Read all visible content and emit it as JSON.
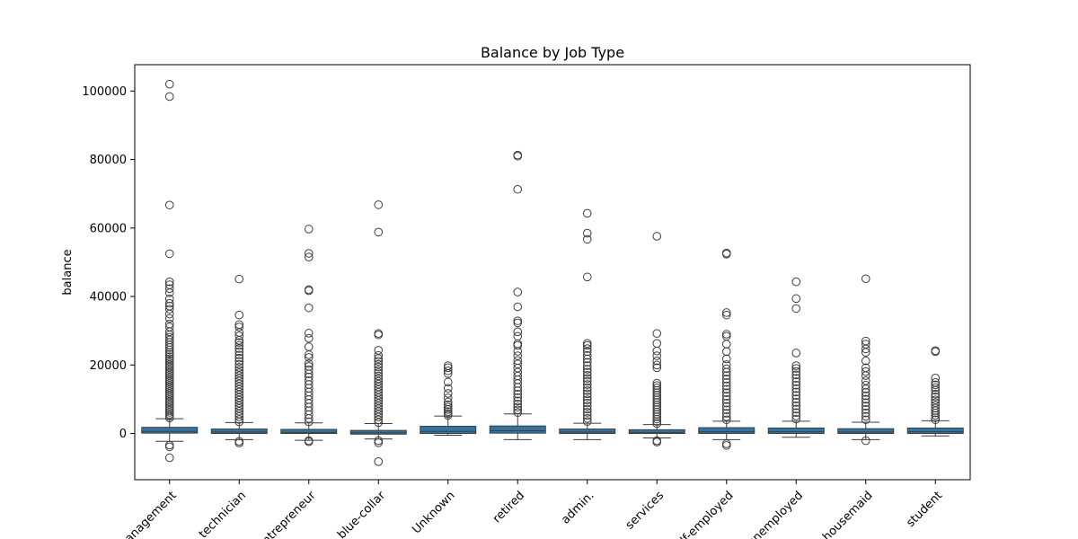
{
  "chart_data": {
    "type": "box",
    "title": "Balance by Job Type",
    "xlabel": "",
    "ylabel": "balance",
    "ylim": [
      -13500,
      107700
    ],
    "yticks": [
      0,
      20000,
      40000,
      60000,
      80000,
      100000
    ],
    "ytick_labels": [
      "0",
      "20000",
      "40000",
      "60000",
      "80000",
      "100000"
    ],
    "box_color": "#3274a1",
    "categories": [
      "management",
      "technician",
      "entrepreneur",
      "blue-collar",
      "Unknown",
      "retired",
      "admin.",
      "services",
      "self-employed",
      "unemployed",
      "housemaid",
      "student"
    ],
    "boxes": [
      {
        "q1": 100,
        "median": 600,
        "q3": 1800,
        "whisker_low": -2300,
        "whisker_high": 4300,
        "outliers": [
          102000,
          98400,
          66700,
          52500,
          44300,
          43400,
          42300,
          41100,
          39300,
          38000,
          37200,
          36300,
          34900,
          33600,
          32000,
          31100,
          29700,
          28800,
          28100,
          27300,
          26600,
          25800,
          25100,
          24400,
          23700,
          23100,
          22400,
          21800,
          21200,
          20600,
          20000,
          19400,
          18800,
          18200,
          17600,
          17000,
          16400,
          15800,
          15200,
          14600,
          14000,
          13400,
          12800,
          12200,
          11600,
          11000,
          10400,
          9800,
          9200,
          8600,
          8000,
          7400,
          6800,
          6200,
          5600,
          5000,
          4500,
          -3400,
          -3900,
          -7100
        ]
      },
      {
        "q1": 0,
        "median": 400,
        "q3": 1300,
        "whisker_low": -1800,
        "whisker_high": 3200,
        "outliers": [
          45100,
          34600,
          31800,
          31100,
          29500,
          28500,
          27200,
          26600,
          25700,
          24800,
          23900,
          22900,
          22000,
          21100,
          20200,
          19300,
          18500,
          17700,
          16900,
          16100,
          15300,
          14500,
          13700,
          12900,
          12100,
          11300,
          10500,
          9700,
          8900,
          8100,
          7300,
          6500,
          5700,
          4900,
          4100,
          3400,
          -2300,
          -2800
        ]
      },
      {
        "q1": 0,
        "median": 300,
        "q3": 1200,
        "whisker_low": -2000,
        "whisker_high": 3100,
        "outliers": [
          59700,
          52600,
          51500,
          42000,
          41700,
          36700,
          29300,
          27800,
          25300,
          23000,
          22200,
          20400,
          19600,
          18600,
          17400,
          16500,
          15400,
          14300,
          13200,
          12100,
          11000,
          9900,
          8800,
          7700,
          6600,
          5500,
          4400,
          3400,
          -2100,
          -2400
        ]
      },
      {
        "q1": -200,
        "median": 200,
        "q3": 900,
        "whisker_low": -1600,
        "whisker_high": 2900,
        "outliers": [
          66800,
          58800,
          29200,
          28800,
          24300,
          22800,
          21900,
          21100,
          20200,
          19400,
          18500,
          17700,
          16800,
          16000,
          15200,
          14400,
          13600,
          12800,
          12000,
          11200,
          10400,
          9600,
          8800,
          8000,
          7200,
          6400,
          5600,
          4800,
          4000,
          3200,
          -2100,
          -2700,
          -8200
        ]
      },
      {
        "q1": 0,
        "median": 600,
        "q3": 2100,
        "whisker_low": -500,
        "whisker_high": 5100,
        "outliers": [
          19800,
          19200,
          18300,
          17500,
          15000,
          13200,
          11700,
          10400,
          9200,
          8400,
          7700,
          7000,
          6400,
          5800,
          5300
        ]
      },
      {
        "q1": 100,
        "median": 800,
        "q3": 2200,
        "whisker_low": -1800,
        "whisker_high": 5700,
        "outliers": [
          81300,
          81000,
          71300,
          41300,
          37000,
          32900,
          32300,
          29700,
          28400,
          26200,
          25700,
          24000,
          22700,
          21300,
          20300,
          19100,
          17900,
          16800,
          15700,
          14600,
          13500,
          12500,
          11500,
          10500,
          9500,
          8600,
          7700,
          6900,
          6100
        ]
      },
      {
        "q1": 0,
        "median": 400,
        "q3": 1300,
        "whisker_low": -1800,
        "whisker_high": 3000,
        "outliers": [
          64300,
          58500,
          56700,
          45700,
          26300,
          25700,
          24800,
          23900,
          22800,
          21800,
          20800,
          19800,
          18800,
          17900,
          17000,
          16100,
          15200,
          14300,
          13400,
          12500,
          11600,
          10700,
          9800,
          8900,
          8000,
          7100,
          6200,
          5300,
          4400,
          3500
        ]
      },
      {
        "q1": 0,
        "median": 300,
        "q3": 1100,
        "whisker_low": -1300,
        "whisker_high": 2600,
        "outliers": [
          57600,
          29200,
          26300,
          24100,
          22700,
          21200,
          20000,
          19200,
          14700,
          14000,
          13300,
          12600,
          11900,
          11200,
          10500,
          9800,
          9100,
          8400,
          7700,
          7000,
          6300,
          5600,
          4900,
          4200,
          3500,
          2900,
          -2100,
          -2500
        ]
      },
      {
        "q1": 0,
        "median": 500,
        "q3": 1700,
        "whisker_low": -1800,
        "whisker_high": 3600,
        "outliers": [
          52700,
          52400,
          35300,
          34600,
          29000,
          28400,
          26100,
          23900,
          21800,
          20100,
          18900,
          17900,
          16900,
          15900,
          14900,
          13900,
          12900,
          11900,
          10900,
          9900,
          8900,
          7900,
          6900,
          5900,
          4900,
          4000,
          -3000,
          -3500
        ]
      },
      {
        "q1": 0,
        "median": 500,
        "q3": 1600,
        "whisker_low": -1100,
        "whisker_high": 3600,
        "outliers": [
          44300,
          39400,
          36500,
          23500,
          19800,
          19000,
          18100,
          17100,
          16100,
          15100,
          14100,
          13100,
          12100,
          11100,
          10100,
          9100,
          8100,
          7100,
          6100,
          5100,
          4200
        ]
      },
      {
        "q1": 0,
        "median": 400,
        "q3": 1400,
        "whisker_low": -1800,
        "whisker_high": 3300,
        "outliers": [
          45200,
          27000,
          26100,
          24700,
          23700,
          21200,
          19200,
          18100,
          16900,
          15400,
          14100,
          13000,
          12000,
          11000,
          10000,
          9000,
          8000,
          7000,
          6000,
          5000,
          4000,
          -2100
        ]
      },
      {
        "q1": 0,
        "median": 500,
        "q3": 1600,
        "whisker_low": -700,
        "whisker_high": 3700,
        "outliers": [
          24200,
          23900,
          16200,
          14900,
          14200,
          13400,
          12600,
          11500,
          10700,
          9800,
          9000,
          8200,
          7400,
          6700,
          6000,
          5300,
          4600,
          4000
        ]
      }
    ]
  }
}
